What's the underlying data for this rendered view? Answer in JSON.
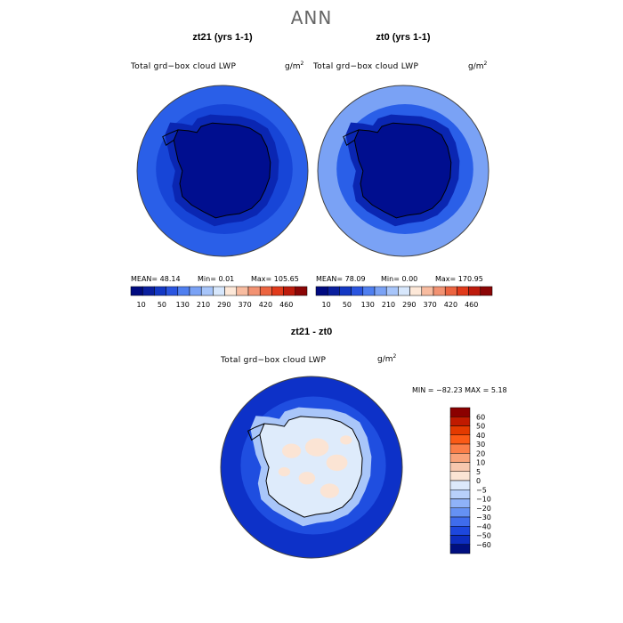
{
  "main_title": "ANN",
  "chart_data": [
    {
      "type": "heatmap",
      "title": "zt21 (yrs 1-1)",
      "variable": "Total grd−box cloud LWP",
      "units": "g/m",
      "units_exp": "2",
      "stats": {
        "mean": "MEAN=  48.14",
        "min": "Min=    0.01",
        "max": "Max= 105.65"
      },
      "colorbar_levels": [
        10,
        50,
        130,
        210,
        290,
        370,
        420,
        460
      ],
      "colorbar_tick_labels": [
        "10",
        "50",
        "130",
        "210",
        "290",
        "370",
        "420",
        "460"
      ],
      "colorbar_colors": [
        "#000a80",
        "#0a1f9e",
        "#1338c4",
        "#2a55e0",
        "#4f7ff0",
        "#7aa2f5",
        "#a7c5fa",
        "#d7e7fc",
        "#fde8d8",
        "#f8bca0",
        "#f29272",
        "#ec6440",
        "#e13a1b",
        "#bd1b0c",
        "#8b0606"
      ],
      "region_colors": {
        "continent": "#000e8f",
        "coast": "#0a26b2",
        "ocean": "#1745d7",
        "outer": "#2a5fe8"
      }
    },
    {
      "type": "heatmap",
      "title": "zt0 (yrs 1-1)",
      "variable": "Total grd−box cloud LWP",
      "units": "g/m",
      "units_exp": "2",
      "stats": {
        "mean": "MEAN=  78.09",
        "min": "Min=    0.00",
        "max": "Max= 170.95"
      },
      "colorbar_levels": [
        10,
        50,
        130,
        210,
        290,
        370,
        420,
        460
      ],
      "colorbar_tick_labels": [
        "10",
        "50",
        "130",
        "210",
        "290",
        "370",
        "420",
        "460"
      ],
      "colorbar_colors": [
        "#000a80",
        "#0a1f9e",
        "#1338c4",
        "#2a55e0",
        "#4f7ff0",
        "#7aa2f5",
        "#a7c5fa",
        "#d7e7fc",
        "#fde8d8",
        "#f8bca0",
        "#f29272",
        "#ec6440",
        "#e13a1b",
        "#bd1b0c",
        "#8b0606"
      ],
      "region_colors": {
        "continent": "#000e8f",
        "coast": "#0a26b2",
        "ocean": "#2a5fe8",
        "outer": "#7aa2f5"
      }
    },
    {
      "type": "heatmap",
      "title": "zt21 - zt0",
      "variable": "Total grd−box cloud LWP",
      "units": "g/m",
      "units_exp": "2",
      "stats": {
        "minmax": "MIN = −82.23 MAX =    5.18"
      },
      "colorbar_levels": [
        60,
        50,
        40,
        30,
        20,
        10,
        5,
        0,
        -5,
        -10,
        -20,
        -30,
        -40,
        -50,
        -60
      ],
      "colorbar_tick_labels": [
        "60",
        "50",
        "40",
        "30",
        "20",
        "10",
        "5",
        "0",
        "−5",
        "−10",
        "−20",
        "−30",
        "−40",
        "−50",
        "−60"
      ],
      "colorbar_colors": [
        "#8b0000",
        "#c01a00",
        "#e43a00",
        "#fb5a16",
        "#fb7e48",
        "#f9a37a",
        "#f7c7ae",
        "#fbe4d4",
        "#dce9fb",
        "#b8d0fb",
        "#8fb2f8",
        "#6591f3",
        "#3f6cec",
        "#1d47de",
        "#0d2dc0",
        "#000f80"
      ],
      "region_colors": {
        "continent": "#deebfb",
        "coast": "#a9c6f9",
        "ocean": "#1f4ee0",
        "outer": "#0d31c8",
        "patches": "#fbe4d4"
      }
    }
  ]
}
